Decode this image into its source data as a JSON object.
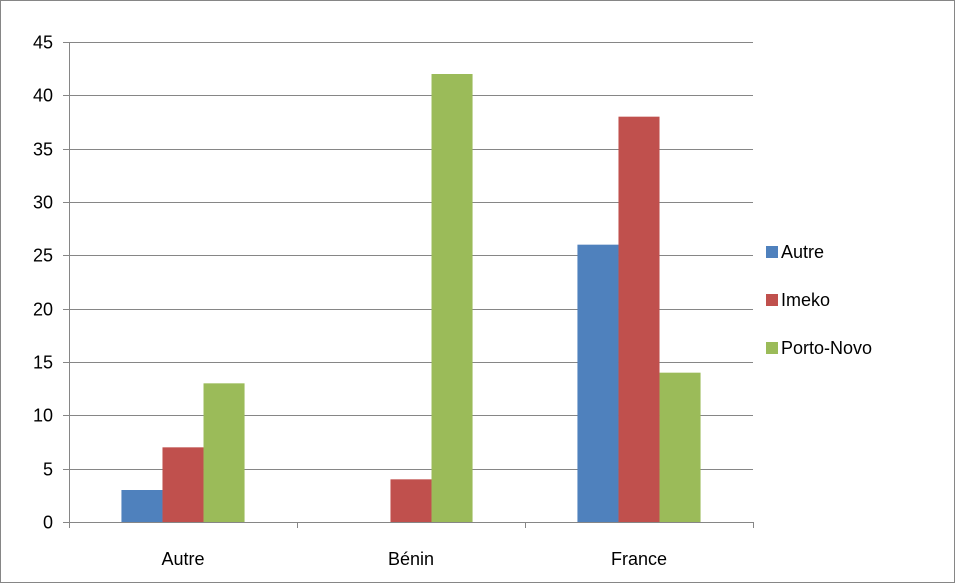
{
  "chart_data": {
    "type": "bar",
    "title": "",
    "xlabel": "",
    "ylabel": "",
    "categories": [
      "Autre",
      "Bénin",
      "France"
    ],
    "series": [
      {
        "name": "Autre",
        "values": [
          3,
          0,
          26
        ],
        "color": "#4F81BD"
      },
      {
        "name": "Imeko",
        "values": [
          7,
          4,
          38
        ],
        "color": "#C0504D"
      },
      {
        "name": "Porto-Novo",
        "values": [
          13,
          42,
          14
        ],
        "color": "#9BBB59"
      }
    ],
    "ylim": [
      0,
      45
    ],
    "yticks": [
      0,
      5,
      10,
      15,
      20,
      25,
      30,
      35,
      40,
      45
    ],
    "grid": true,
    "legend_position": "right"
  }
}
